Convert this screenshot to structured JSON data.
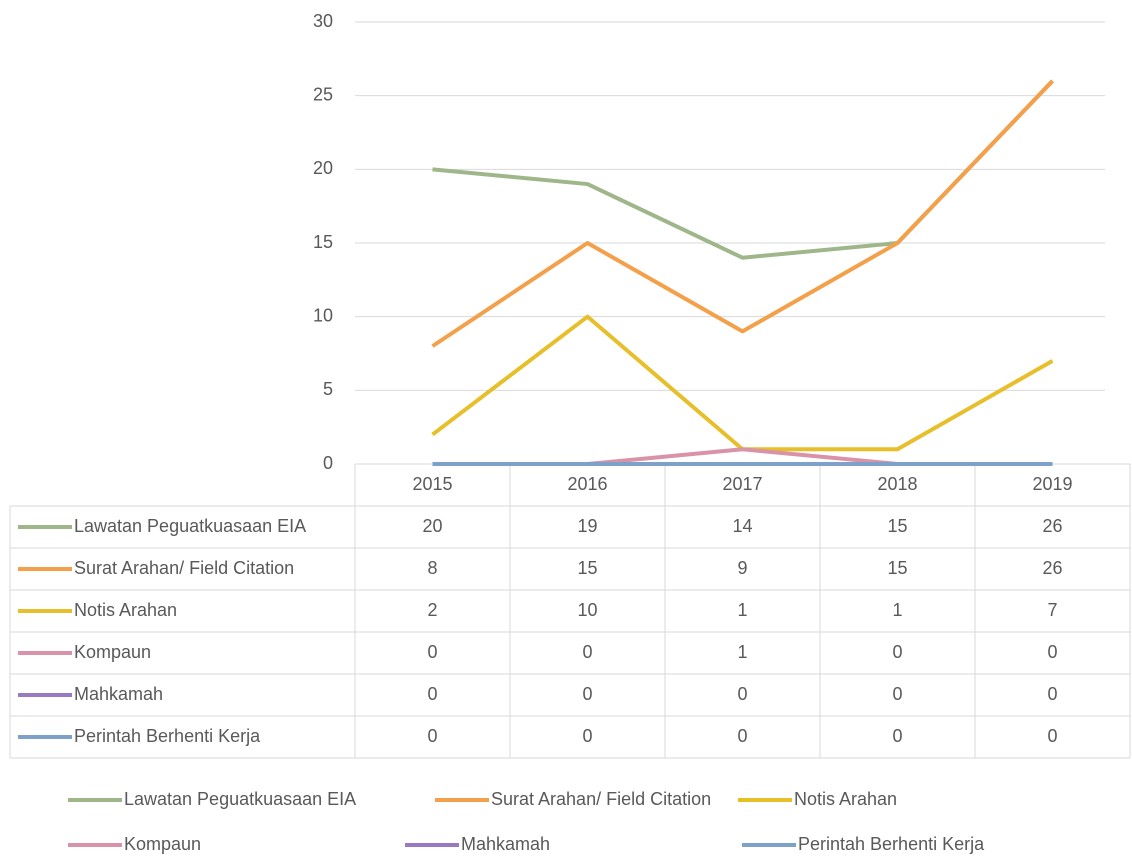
{
  "chart_data": {
    "type": "line",
    "categories": [
      "2015",
      "2016",
      "2017",
      "2018",
      "2019"
    ],
    "ylim": [
      0,
      30
    ],
    "yticks": [
      0,
      5,
      10,
      15,
      20,
      25,
      30
    ],
    "grid": true,
    "series": [
      {
        "name": "Lawatan Peguatkuasaan EIA",
        "color": "#9fb68a",
        "values": [
          20,
          19,
          14,
          15,
          26
        ]
      },
      {
        "name": "Surat Arahan/ Field Citation",
        "color": "#f4a04a",
        "values": [
          8,
          15,
          9,
          15,
          26
        ]
      },
      {
        "name": "Notis Arahan",
        "color": "#e6bf2a",
        "values": [
          2,
          10,
          1,
          1,
          7
        ]
      },
      {
        "name": "Kompaun",
        "color": "#d992a8",
        "values": [
          0,
          0,
          1,
          0,
          0
        ]
      },
      {
        "name": "Mahkamah",
        "color": "#9a78c2",
        "values": [
          0,
          0,
          0,
          0,
          0
        ]
      },
      {
        "name": "Perintah Berhenti Kerja",
        "color": "#7da1c9",
        "values": [
          0,
          0,
          0,
          0,
          0
        ]
      }
    ]
  }
}
